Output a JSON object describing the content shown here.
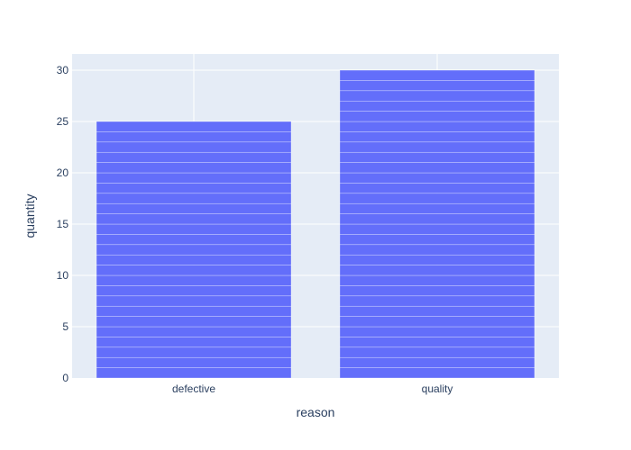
{
  "chart_data": {
    "type": "bar",
    "categories": [
      "defective",
      "quality"
    ],
    "values": [
      25,
      30
    ],
    "segments_per_unit": 1,
    "xlabel": "reason",
    "ylabel": "quantity",
    "ylim": [
      0,
      31.58
    ],
    "yticks": [
      0,
      5,
      10,
      15,
      20,
      25,
      30
    ],
    "grid": true,
    "legend": "none"
  },
  "colors": {
    "bar": "#636efa",
    "plot_bg": "#e5ecf6",
    "grid": "#ffffff",
    "text": "#2a3f5f"
  }
}
